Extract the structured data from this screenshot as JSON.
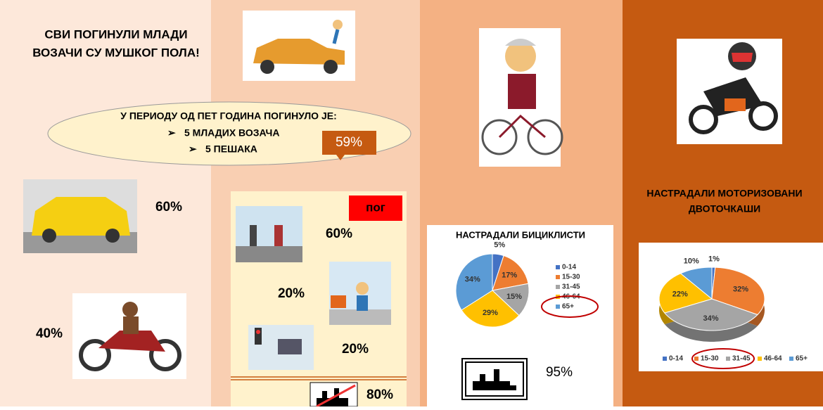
{
  "header": {
    "title_lines": [
      "СВИ ПОГИНУЛИ МЛАДИ",
      "ВОЗАЧИ СУ МУШКОГ ПОЛА!"
    ]
  },
  "ellipse": {
    "heading": "У ПЕРИОДУ ОД ПЕТ ГОДИНА ПОГИНУЛО ЈЕ:",
    "items": [
      "5 МЛАДИХ ВОЗАЧА",
      "5 ПЕШАКА"
    ]
  },
  "callout": "59%",
  "drivers": {
    "car": "60%",
    "motorcycle": "40%"
  },
  "pedestrians": {
    "badge": "пог",
    "stats": [
      "60%",
      "20%",
      "20%",
      "80%"
    ]
  },
  "cyclists": {
    "chart": {
      "type": "pie",
      "title": "НАСТРАДАЛИ БИЦИКЛИСТИ",
      "categories": [
        "0-14",
        "15-30",
        "31-45",
        "46-64",
        "65+"
      ],
      "values": [
        5,
        17,
        15,
        29,
        34
      ],
      "value_labels": [
        "5%",
        "17%",
        "15%",
        "29%",
        "34%"
      ],
      "colors": [
        "#4472c4",
        "#ed7d31",
        "#a5a5a5",
        "#ffc000",
        "#5b9bd5"
      ]
    },
    "city_stat": "95%"
  },
  "motorcyclists": {
    "title_lines": [
      "НАСТРАДАЛИ МОТОРИЗОВАНИ",
      "ДВОТОЧКАШИ"
    ],
    "chart": {
      "type": "pie",
      "categories": [
        "0-14",
        "15-30",
        "31-45",
        "46-64",
        "65+"
      ],
      "values": [
        1,
        32,
        34,
        22,
        10
      ],
      "value_labels": [
        "1%",
        "32%",
        "34%",
        "22%",
        "10%"
      ],
      "colors": [
        "#4472c4",
        "#ed7d31",
        "#a5a5a5",
        "#ffc000",
        "#5b9bd5"
      ]
    }
  }
}
